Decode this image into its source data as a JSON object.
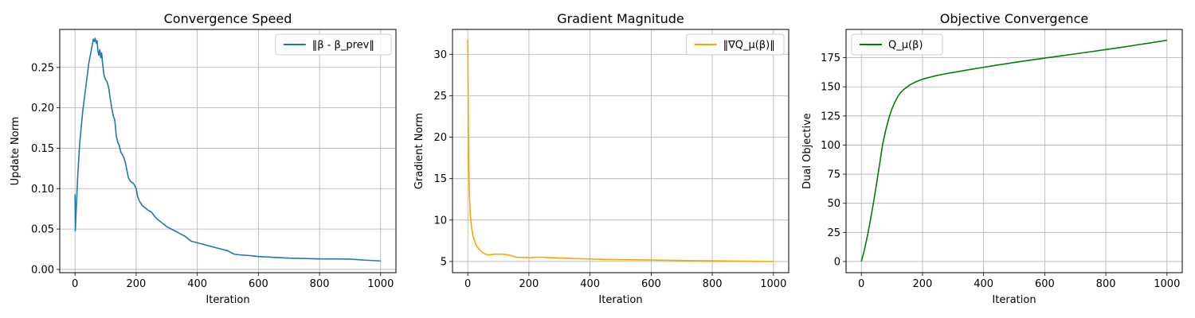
{
  "figure": {
    "background": "#ffffff"
  },
  "chart_data": [
    {
      "type": "line",
      "title": "Convergence Speed",
      "xlabel": "Iteration",
      "ylabel": "Update Norm",
      "xlim": [
        -50,
        1050
      ],
      "ylim": [
        -0.004,
        0.297
      ],
      "xticks": [
        0,
        200,
        400,
        600,
        800,
        1000
      ],
      "xtick_labels": [
        "0",
        "200",
        "400",
        "600",
        "800",
        "1000"
      ],
      "yticks": [
        0.0,
        0.05,
        0.1,
        0.15,
        0.2,
        0.25
      ],
      "ytick_labels": [
        "0.00",
        "0.05",
        "0.10",
        "0.15",
        "0.20",
        "0.25"
      ],
      "grid": true,
      "legend_position": "upper right",
      "series": [
        {
          "name": "‖β - β_prev‖",
          "color": "#1f77b4",
          "x": [
            0,
            1,
            4,
            8,
            15,
            25,
            35,
            45,
            55,
            60,
            63,
            66,
            70,
            72,
            75,
            78,
            81,
            84,
            87,
            90,
            95,
            100,
            105,
            110,
            115,
            120,
            125,
            130,
            135,
            140,
            145,
            150,
            155,
            160,
            165,
            170,
            175,
            180,
            185,
            190,
            195,
            200,
            205,
            210,
            215,
            220,
            230,
            240,
            250,
            260,
            270,
            280,
            290,
            300,
            320,
            340,
            360,
            380,
            390,
            400,
            420,
            440,
            460,
            480,
            500,
            520,
            540,
            560,
            580,
            600,
            650,
            700,
            750,
            800,
            850,
            900,
            950,
            1000
          ],
          "values": [
            0.093,
            0.048,
            0.075,
            0.11,
            0.155,
            0.195,
            0.225,
            0.255,
            0.275,
            0.285,
            0.282,
            0.286,
            0.28,
            0.283,
            0.27,
            0.265,
            0.272,
            0.262,
            0.268,
            0.255,
            0.24,
            0.235,
            0.232,
            0.225,
            0.212,
            0.2,
            0.19,
            0.185,
            0.165,
            0.157,
            0.153,
            0.145,
            0.142,
            0.138,
            0.132,
            0.122,
            0.113,
            0.11,
            0.108,
            0.107,
            0.104,
            0.1,
            0.09,
            0.085,
            0.082,
            0.079,
            0.076,
            0.073,
            0.071,
            0.066,
            0.062,
            0.059,
            0.056,
            0.053,
            0.049,
            0.045,
            0.041,
            0.035,
            0.034,
            0.033,
            0.031,
            0.029,
            0.027,
            0.025,
            0.023,
            0.019,
            0.018,
            0.0175,
            0.0168,
            0.016,
            0.015,
            0.014,
            0.0135,
            0.013,
            0.013,
            0.0128,
            0.0115,
            0.0105
          ]
        }
      ]
    },
    {
      "type": "line",
      "title": "Gradient Magnitude",
      "xlabel": "Iteration",
      "ylabel": "Gradient Norm",
      "xlim": [
        -50,
        1050
      ],
      "ylim": [
        3.65,
        33.0
      ],
      "xticks": [
        0,
        200,
        400,
        600,
        800,
        1000
      ],
      "xtick_labels": [
        "0",
        "200",
        "400",
        "600",
        "800",
        "1000"
      ],
      "yticks": [
        5,
        10,
        15,
        20,
        25,
        30
      ],
      "ytick_labels": [
        "5",
        "10",
        "15",
        "20",
        "25",
        "30"
      ],
      "grid": true,
      "legend_position": "upper right",
      "series": [
        {
          "name": "‖∇Q_μ(β)‖",
          "color": "#ffa500",
          "x": [
            0,
            1,
            2,
            3,
            5,
            8,
            12,
            16,
            20,
            25,
            30,
            40,
            50,
            60,
            70,
            80,
            90,
            100,
            110,
            120,
            130,
            140,
            150,
            160,
            170,
            180,
            190,
            200,
            220,
            240,
            260,
            280,
            300,
            350,
            400,
            450,
            500,
            550,
            600,
            650,
            700,
            750,
            800,
            850,
            900,
            950,
            1000
          ],
          "values": [
            31.8,
            27.0,
            21.0,
            17.0,
            13.2,
            10.8,
            9.2,
            8.3,
            7.7,
            7.2,
            6.8,
            6.35,
            6.05,
            5.85,
            5.8,
            5.85,
            5.9,
            5.88,
            5.9,
            5.85,
            5.8,
            5.75,
            5.6,
            5.5,
            5.5,
            5.48,
            5.5,
            5.45,
            5.5,
            5.52,
            5.48,
            5.45,
            5.42,
            5.35,
            5.3,
            5.25,
            5.22,
            5.2,
            5.18,
            5.15,
            5.12,
            5.1,
            5.08,
            5.06,
            5.04,
            5.02,
            5.0
          ]
        }
      ]
    },
    {
      "type": "line",
      "title": "Objective Convergence",
      "xlabel": "Iteration",
      "ylabel": "Dual Objective",
      "xlim": [
        -50,
        1050
      ],
      "ylim": [
        -9.6,
        199.3
      ],
      "xticks": [
        0,
        200,
        400,
        600,
        800,
        1000
      ],
      "xtick_labels": [
        "0",
        "200",
        "400",
        "600",
        "800",
        "1000"
      ],
      "yticks": [
        0,
        25,
        50,
        75,
        100,
        125,
        150,
        175
      ],
      "ytick_labels": [
        "0",
        "25",
        "50",
        "75",
        "100",
        "125",
        "150",
        "175"
      ],
      "grid": true,
      "legend_position": "upper left",
      "series": [
        {
          "name": "Q_μ(β)",
          "color": "#008000",
          "x": [
            0,
            10,
            20,
            30,
            40,
            50,
            60,
            70,
            80,
            90,
            100,
            110,
            120,
            130,
            140,
            150,
            160,
            170,
            180,
            190,
            200,
            220,
            240,
            260,
            280,
            300,
            350,
            400,
            450,
            500,
            550,
            600,
            650,
            700,
            750,
            800,
            850,
            900,
            950,
            1000
          ],
          "values": [
            0,
            10,
            22,
            36,
            51,
            67,
            84,
            101,
            113,
            123,
            131,
            137,
            142,
            145.5,
            148,
            150,
            151.8,
            153.2,
            154.5,
            155.5,
            156.5,
            158,
            159.3,
            160.4,
            161.4,
            162.3,
            164.6,
            166.8,
            168.9,
            170.9,
            172.8,
            174.7,
            176.5,
            178.3,
            180.1,
            182,
            183.9,
            185.9,
            187.9,
            190
          ]
        }
      ]
    }
  ]
}
